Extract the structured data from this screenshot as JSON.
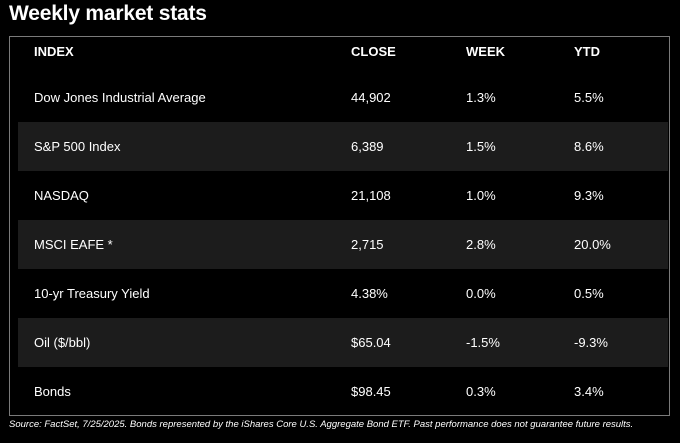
{
  "title": "Weekly market stats",
  "table": {
    "headers": {
      "index": "INDEX",
      "close": "CLOSE",
      "week": "WEEK",
      "ytd": "YTD"
    },
    "rows": [
      {
        "index": "Dow Jones Industrial Average",
        "close": "44,902",
        "week": "1.3%",
        "ytd": "5.5%"
      },
      {
        "index": "S&P 500 Index",
        "close": "6,389",
        "week": "1.5%",
        "ytd": "8.6%"
      },
      {
        "index": "NASDAQ",
        "close": "21,108",
        "week": "1.0%",
        "ytd": "9.3%"
      },
      {
        "index": "MSCI EAFE *",
        "close": "2,715",
        "week": "2.8%",
        "ytd": "20.0%"
      },
      {
        "index": "10-yr Treasury Yield",
        "close": "4.38%",
        "week": "0.0%",
        "ytd": "0.5%"
      },
      {
        "index": "Oil ($/bbl)",
        "close": "$65.04",
        "week": "-1.5%",
        "ytd": "-9.3%"
      },
      {
        "index": "Bonds",
        "close": "$98.45",
        "week": "0.3%",
        "ytd": "3.4%"
      }
    ]
  },
  "footer": "Source: FactSet, 7/25/2025. Bonds represented by the iShares Core U.S. Aggregate Bond ETF. Past performance does not guarantee future results.",
  "colors": {
    "background": "#000000",
    "text": "#ffffff",
    "shaded_row": "#1c1c1c",
    "border": "#7a7a7a"
  }
}
